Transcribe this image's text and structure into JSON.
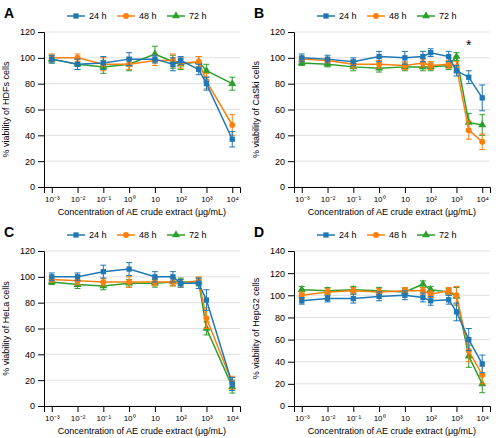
{
  "chart_data": [
    {
      "type": "line",
      "title": "A",
      "ylabel": "% viability of HDFs cells",
      "xlabel": "Concentration of AE crude extract (μg/mL)",
      "x": [
        0.001,
        0.01,
        0.1,
        1,
        10,
        50,
        100,
        500,
        1000,
        10000
      ],
      "series": [
        {
          "name": "24 h",
          "marker": "square",
          "values": [
            99,
            95,
            96,
            99,
            99,
            95,
            98,
            91,
            80,
            37
          ],
          "errors": [
            3,
            4,
            5,
            5,
            3,
            5,
            3,
            4,
            5,
            6
          ]
        },
        {
          "name": "48 h",
          "marker": "circle",
          "values": [
            100,
            100,
            95,
            95,
            98,
            98,
            96,
            97,
            82,
            48
          ],
          "errors": [
            3,
            3,
            5,
            4,
            4,
            5,
            4,
            4,
            6,
            8
          ]
        },
        {
          "name": "72 h",
          "marker": "triangle",
          "values": [
            99,
            95,
            93,
            95,
            103,
            97,
            95,
            97,
            90,
            80
          ],
          "errors": [
            3,
            4,
            5,
            5,
            6,
            5,
            4,
            4,
            5,
            5
          ]
        }
      ],
      "log": "x",
      "xlim": [
        0.0005,
        20000
      ],
      "xticks": [
        {
          "value": 0.001,
          "label": "10⁻³"
        },
        {
          "value": 0.01,
          "label": "10⁻²"
        },
        {
          "value": 0.1,
          "label": "10⁻¹"
        },
        {
          "value": 1,
          "label": "10⁰"
        },
        10,
        {
          "value": 100,
          "label": "10²"
        },
        {
          "value": 1000,
          "label": "10³"
        },
        {
          "value": 10000,
          "label": "10⁴"
        }
      ],
      "ylim": [
        0,
        120
      ],
      "yticks": [
        0,
        20,
        40,
        60,
        80,
        100,
        120
      ],
      "grid": "y",
      "legend": "top"
    },
    {
      "type": "line",
      "title": "B",
      "ylabel": "% viability of CaSki cells",
      "xlabel": "Concentration of AE crude extract (μg/mL)",
      "x": [
        0.001,
        0.01,
        0.1,
        1,
        10,
        50,
        100,
        500,
        1000,
        3000,
        10000
      ],
      "series": [
        {
          "name": "24 h",
          "marker": "square",
          "values": [
            100,
            99,
            97,
            101,
            100,
            101,
            104,
            101,
            90,
            85,
            69
          ],
          "errors": [
            3,
            3,
            3,
            4,
            5,
            4,
            3,
            4,
            4,
            5,
            10
          ]
        },
        {
          "name": "48 h",
          "marker": "circle",
          "values": [
            99,
            98,
            95,
            95,
            94,
            96,
            94,
            95,
            93,
            44,
            35
          ],
          "errors": [
            2,
            2,
            3,
            3,
            3,
            3,
            3,
            3,
            4,
            7,
            6
          ]
        },
        {
          "name": "72 h",
          "marker": "triangle",
          "values": [
            96,
            95,
            93,
            92,
            93,
            93,
            93,
            94,
            101,
            50,
            48
          ],
          "errors": [
            2,
            2,
            3,
            3,
            3,
            3,
            3,
            3,
            3,
            7,
            8
          ]
        }
      ],
      "log": "x",
      "xlim": [
        0.0005,
        20000
      ],
      "xticks": [
        {
          "value": 0.001,
          "label": "10⁻³"
        },
        {
          "value": 0.01,
          "label": "10⁻²"
        },
        {
          "value": 0.1,
          "label": "10⁻¹"
        },
        {
          "value": 1,
          "label": "10⁰"
        },
        10,
        {
          "value": 100,
          "label": "10²"
        },
        {
          "value": 1000,
          "label": "10³"
        },
        {
          "value": 10000,
          "label": "10⁴"
        }
      ],
      "ylim": [
        0,
        120
      ],
      "yticks": [
        0,
        20,
        40,
        60,
        80,
        100,
        120
      ],
      "grid": "y",
      "legend": "top",
      "annotations": [
        {
          "text": "*",
          "x": 3000,
          "y": 106
        }
      ]
    },
    {
      "type": "line",
      "title": "C",
      "ylabel": "% viability of HeLa cells",
      "xlabel": "Concentration of AE crude extract (μg/mL)",
      "x": [
        0.001,
        0.01,
        0.1,
        1,
        10,
        50,
        100,
        500,
        1000,
        10000
      ],
      "series": [
        {
          "name": "24 h",
          "marker": "square",
          "values": [
            100,
            100,
            104,
            106,
            100,
            100,
            95,
            95,
            82,
            17
          ],
          "errors": [
            3,
            3,
            5,
            5,
            4,
            4,
            3,
            4,
            8,
            5
          ]
        },
        {
          "name": "48 h",
          "marker": "circle",
          "values": [
            98,
            97,
            96,
            96,
            96,
            96,
            95,
            97,
            68,
            18
          ],
          "errors": [
            2,
            3,
            3,
            4,
            3,
            3,
            3,
            3,
            8,
            5
          ]
        },
        {
          "name": "72 h",
          "marker": "triangle",
          "values": [
            96,
            94,
            93,
            95,
            95,
            96,
            96,
            96,
            60,
            15
          ],
          "errors": [
            2,
            3,
            3,
            3,
            3,
            3,
            3,
            3,
            5,
            5
          ]
        }
      ],
      "log": "x",
      "xlim": [
        0.0005,
        20000
      ],
      "xticks": [
        {
          "value": 0.001,
          "label": "10⁻³"
        },
        {
          "value": 0.01,
          "label": "10⁻²"
        },
        {
          "value": 0.1,
          "label": "10⁻¹"
        },
        {
          "value": 1,
          "label": "10⁰"
        },
        10,
        {
          "value": 100,
          "label": "10²"
        },
        {
          "value": 1000,
          "label": "10³"
        },
        {
          "value": 10000,
          "label": "10⁴"
        }
      ],
      "ylim": [
        0,
        120
      ],
      "yticks": [
        0,
        20,
        40,
        60,
        80,
        100,
        120
      ],
      "grid": "y",
      "legend": "top"
    },
    {
      "type": "line",
      "title": "D",
      "ylabel": "% viability of HepG2 cells",
      "xlabel": "Concentration of AE crude extract (μg/mL)",
      "x": [
        0.001,
        0.01,
        0.1,
        1,
        10,
        50,
        100,
        500,
        1000,
        3000,
        10000
      ],
      "series": [
        {
          "name": "24 h",
          "marker": "square",
          "values": [
            95,
            97,
            97,
            99,
            100,
            98,
            95,
            96,
            85,
            60,
            38
          ],
          "errors": [
            3,
            3,
            4,
            4,
            4,
            4,
            4,
            4,
            8,
            10,
            8
          ]
        },
        {
          "name": "48 h",
          "marker": "circle",
          "values": [
            100,
            103,
            104,
            103,
            104,
            104,
            101,
            104,
            100,
            50,
            28
          ],
          "errors": [
            3,
            3,
            3,
            3,
            3,
            3,
            3,
            3,
            8,
            10,
            8
          ]
        },
        {
          "name": "72 h",
          "marker": "triangle",
          "values": [
            105,
            104,
            105,
            104,
            103,
            110,
            105,
            103,
            99,
            45,
            20
          ],
          "errors": [
            3,
            3,
            3,
            3,
            3,
            3,
            3,
            3,
            8,
            10,
            8
          ]
        }
      ],
      "log": "x",
      "xlim": [
        0.0005,
        20000
      ],
      "xticks": [
        {
          "value": 0.001,
          "label": "10⁻³"
        },
        {
          "value": 0.01,
          "label": "10⁻²"
        },
        {
          "value": 0.1,
          "label": "10⁻¹"
        },
        {
          "value": 1,
          "label": "10⁰"
        },
        10,
        {
          "value": 100,
          "label": "10²"
        },
        {
          "value": 1000,
          "label": "10³"
        },
        {
          "value": 10000,
          "label": "10⁴"
        }
      ],
      "ylim": [
        0,
        140
      ],
      "yticks": [
        0,
        20,
        40,
        60,
        80,
        100,
        120,
        140
      ],
      "grid": "y",
      "legend": "top"
    }
  ]
}
